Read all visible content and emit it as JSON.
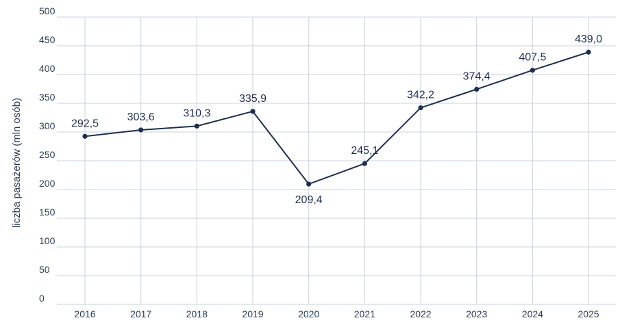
{
  "chart_data": {
    "type": "line",
    "title": "",
    "xlabel": "",
    "ylabel": "liczba pasażerów (mln osób)",
    "ylim": [
      0,
      500
    ],
    "yticks": [
      "0",
      "50",
      "100",
      "150",
      "200",
      "250",
      "300",
      "350",
      "400",
      "450",
      "500"
    ],
    "categories": [
      "2016",
      "2017",
      "2018",
      "2019",
      "2020",
      "2021",
      "2022",
      "2023",
      "2024",
      "2025"
    ],
    "values": [
      292.5,
      303.6,
      310.3,
      335.9,
      209.4,
      245.1,
      342.2,
      374.4,
      407.5,
      439.0
    ],
    "labels": [
      "292,5",
      "303,6",
      "310,3",
      "335,9",
      "209,4",
      "245,1",
      "342,2",
      "374,4",
      "407,5",
      "439,0"
    ],
    "grid": true,
    "colors": {
      "line": "#1d2f4f",
      "grid": "#c9d1dc",
      "text": "#2a3b55"
    }
  }
}
